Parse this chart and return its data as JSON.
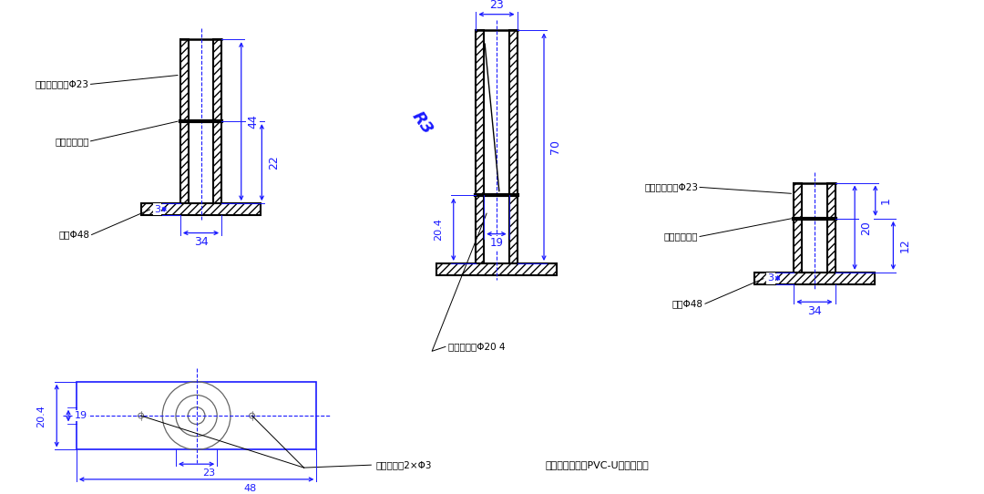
{
  "bg_color": "#ffffff",
  "dim_color": "#1a1aff",
  "line_color": "#000000",
  "gray_color": "#666666",
  "annotations": {
    "view1_label1": "承插管体外径Φ23",
    "view1_label2": "承插管内限位",
    "view1_label3": "底座Φ48",
    "view3_label1": "承插管体外径Φ23",
    "view3_label2": "承插管内限位",
    "view3_label3": "底座Φ48",
    "bottom_label": "底座固定吖2×Φ3",
    "note": "注：件体材料为PVC-U塑料，铸件",
    "inner_dia": "承插管内径Φ20 4"
  }
}
